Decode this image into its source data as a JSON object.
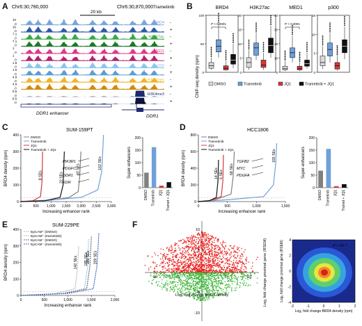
{
  "panels": {
    "A": {
      "letter": "A",
      "coord_left": "Chr6:30,780,000",
      "coord_right": "Chr6:30,870,000",
      "scale_label": "20 kb",
      "treatment_col": "Trametinib",
      "tracks": [
        {
          "label": "BRD4",
          "color": "#7aa5d9",
          "scale_top": "10",
          "scale_bot": ".0",
          "sign": "-"
        },
        {
          "label": "",
          "color": "#2f5aa6",
          "scale_top": "10",
          "scale_bot": ".0",
          "sign": "+"
        },
        {
          "label": "H3K27ac",
          "color": "#3aa845",
          "scale_top": "7.1",
          "scale_bot": ".0",
          "sign": "-"
        },
        {
          "label": "",
          "color": "#1d7a2c",
          "scale_top": "7.1",
          "scale_bot": ".0",
          "sign": "+"
        },
        {
          "label": "MED1",
          "color": "#e0388b",
          "scale_top": "1",
          "scale_bot": ".0",
          "sign": "-"
        },
        {
          "label": "",
          "color": "#b3236e",
          "scale_top": "1",
          "scale_bot": ".0",
          "sign": "+"
        },
        {
          "label": "p300",
          "color": "#8ec6ea",
          "scale_top": "1.6",
          "scale_bot": ".0",
          "sign": "-"
        },
        {
          "label": "",
          "color": "#5a9dd4",
          "scale_top": "1.6",
          "scale_bot": ".0",
          "sign": "+"
        },
        {
          "label": "H3K4me1",
          "color": "#f0b429",
          "scale_top": "4.9",
          "scale_bot": ".0",
          "sign": "-"
        },
        {
          "label": "",
          "color": "#d18a0d",
          "scale_top": "4.9",
          "scale_bot": ".0",
          "sign": "+"
        },
        {
          "label": "H3K4me3",
          "color": "#1c2b6e",
          "scale_top": "8.5",
          "scale_bot": ".0",
          "sign": "-"
        },
        {
          "label": "",
          "color": "#0c1447",
          "scale_top": "8.5",
          "scale_bot": ".0",
          "sign": "+"
        }
      ],
      "enhancer_label": "DDR1 enhancer",
      "gene_label": "DDR1"
    },
    "B": {
      "letter": "B",
      "ylabel": "ChIP-seq density (rpm)",
      "subplots": [
        {
          "title": "BRD4",
          "pval": "P < 0.0001",
          "ylim": [
            0,
            100
          ],
          "ticks": [
            "0",
            "50",
            "100"
          ]
        },
        {
          "title": "H3K27ac",
          "pval": "",
          "ylim": [
            0,
            20
          ],
          "ticks": [
            "0",
            "5",
            "10",
            "15",
            "20"
          ]
        },
        {
          "title": "MED1",
          "pval": "P < 0.0001",
          "ylim": [
            0,
            40
          ],
          "ticks": [
            "0",
            "10",
            "20",
            "30",
            "40"
          ]
        },
        {
          "title": "p300",
          "pval": "",
          "ylim": [
            0,
            15
          ],
          "ticks": [
            "0",
            "5",
            "10",
            "15"
          ]
        }
      ],
      "legend": [
        {
          "label": "DMSO",
          "color": "#d9d9d9"
        },
        {
          "label": "Trametinib",
          "color": "#6fa0d8"
        },
        {
          "label": "JQ1",
          "color": "#d43a3a"
        },
        {
          "label": "Trametinib + JQ1",
          "color": "#111111"
        }
      ]
    },
    "C": {
      "letter": "C",
      "title": "SUM-159PT",
      "legend": [
        "DMSO",
        "Trametinib",
        "JQ1",
        "Trametinib + JQ1"
      ],
      "ylabel": "BRD4 density (rpm)",
      "xlabel": "Increasing enhancer rank",
      "xticks": [
        "0",
        "500",
        "1,000",
        "1,500",
        "2,000",
        "2,500",
        "3,000"
      ],
      "yticks": [
        "0",
        "100",
        "200",
        "300",
        "400"
      ],
      "se_labels": [
        "8 SEs",
        "60 SEs",
        "22 SEs",
        "162 SEs"
      ],
      "genes": [
        "PIK3R1",
        "PDGFC",
        "DDR1",
        "KDR"
      ],
      "bar_ylabel": "Super-enhancers",
      "bar_yticks": [
        "0",
        "50",
        "100",
        "150",
        "200"
      ],
      "bar_categories": [
        "DMSO",
        "Trametinib",
        "JQ1",
        "Tramet + JQ1"
      ]
    },
    "D": {
      "letter": "D",
      "title": "HCC1806",
      "legend": [
        "DMSO",
        "Trametinib",
        "JQ1",
        "Trametinib + JQ1"
      ],
      "ylabel": "BRD4 density (rpm)",
      "xlabel": "Increasing enhancer rank",
      "xticks": [
        "0",
        "500",
        "1,000",
        "1,500"
      ],
      "yticks": [
        "0",
        "200",
        "400",
        "600",
        "800"
      ],
      "se_labels": [
        "14 SEs",
        "6 SEs",
        "68 SEs",
        "155 SEs"
      ],
      "genes": [
        "TGFB2",
        "MYC",
        "PDGFA"
      ],
      "bar_ylabel": "Super-enhancers",
      "bar_yticks": [
        "0",
        "50",
        "100",
        "150",
        "200"
      ],
      "bar_categories": [
        "DMSO",
        "Trametinib",
        "JQ1",
        "Tramet + JQ1"
      ]
    },
    "E": {
      "letter": "E",
      "title": "SUM-229PE",
      "legend": [
        "EpCAM⁺ (DMSO)",
        "EpCAM⁺ (trametinib)",
        "EpCAM⁻ (DMSO)",
        "EpCAM⁻ (trametinib)"
      ],
      "ylabel": "BRD4 density (rpm)",
      "xlabel": "Increasing enhancer rank",
      "xticks": [
        "0",
        "500",
        "1,000",
        "1,500",
        "2,000"
      ],
      "yticks": [
        "0",
        "100",
        "200",
        "300",
        "400"
      ],
      "se_labels": [
        "142 SEs",
        "185 SEs",
        "189 SEs",
        "209 SEs"
      ]
    },
    "F": {
      "letter": "F",
      "xlabel": "Log₂ fold change BRD4 density",
      "ylabel": "Log₂ fold change proximal gene (RSEM)",
      "xticks": [
        "-10",
        "-5",
        "5",
        "10"
      ],
      "yticks": [
        "10",
        "5",
        "-5",
        "-10"
      ],
      "inset": {
        "pval": "P < 10⁻⁵",
        "xlabel": "Log₂ fold change BRD4 density (rpm)",
        "ylabel": "Log₂ fold change proximal gene (RSEM)",
        "xticks": [
          "-2",
          "-1",
          "0",
          "1",
          "2"
        ],
        "yticks": [
          "-4",
          "-2",
          "0",
          "2",
          "4"
        ]
      }
    }
  },
  "chart_data": [
    {
      "type": "bar",
      "panel": "C-inset",
      "ylabel": "Super-enhancers",
      "categories": [
        "DMSO",
        "Trametinib",
        "JQ1",
        "Tramet + JQ1"
      ],
      "values": [
        60,
        162,
        8,
        22
      ],
      "colors": [
        "#808080",
        "#6fa0d8",
        "#d43a3a",
        "#111111"
      ],
      "ylim": [
        0,
        200
      ]
    },
    {
      "type": "bar",
      "panel": "D-inset",
      "ylabel": "Super-enhancers",
      "categories": [
        "DMSO",
        "Trametinib",
        "JQ1",
        "Tramet + JQ1"
      ],
      "values": [
        68,
        155,
        6,
        14
      ],
      "colors": [
        "#808080",
        "#6fa0d8",
        "#d43a3a",
        "#111111"
      ],
      "ylim": [
        0,
        200
      ]
    },
    {
      "type": "line",
      "panel": "C",
      "xlabel": "Increasing enhancer rank",
      "ylabel": "BRD4 density (rpm)",
      "xlim": [
        0,
        3000
      ],
      "ylim": [
        0,
        400
      ],
      "series": [
        {
          "name": "DMSO",
          "color": "#808080",
          "x": [
            0,
            1000,
            1600,
            1900,
            1950,
            1990
          ],
          "y": [
            0,
            8,
            25,
            60,
            150,
            300
          ]
        },
        {
          "name": "Trametinib",
          "color": "#6fa0d8",
          "x": [
            0,
            1000,
            2000,
            2550,
            2680,
            2740
          ],
          "y": [
            0,
            10,
            25,
            70,
            180,
            400
          ]
        },
        {
          "name": "JQ1",
          "color": "#d43a3a",
          "x": [
            0,
            400,
            650,
            700,
            720
          ],
          "y": [
            0,
            5,
            30,
            120,
            300
          ]
        },
        {
          "name": "Trametinib + JQ1",
          "color": "#111111",
          "x": [
            0,
            800,
            1300,
            1400,
            1440
          ],
          "y": [
            0,
            5,
            25,
            100,
            300
          ]
        }
      ]
    },
    {
      "type": "line",
      "panel": "D",
      "xlabel": "Increasing enhancer rank",
      "ylabel": "BRD4 density (rpm)",
      "xlim": [
        0,
        1600
      ],
      "ylim": [
        0,
        800
      ],
      "series": [
        {
          "name": "DMSO",
          "color": "#808080",
          "x": [
            0,
            300,
            600,
            640,
            660
          ],
          "y": [
            0,
            20,
            90,
            300,
            600
          ]
        },
        {
          "name": "Trametinib",
          "color": "#6fa0d8",
          "x": [
            0,
            600,
            1200,
            1380,
            1420,
            1440
          ],
          "y": [
            0,
            25,
            60,
            200,
            450,
            700
          ]
        },
        {
          "name": "JQ1",
          "color": "#d43a3a",
          "x": [
            0,
            200,
            420,
            450,
            460
          ],
          "y": [
            0,
            10,
            60,
            250,
            560
          ]
        },
        {
          "name": "Trametinib + JQ1",
          "color": "#111111",
          "x": [
            0,
            200,
            330,
            360,
            370
          ],
          "y": [
            0,
            10,
            50,
            250,
            500
          ]
        }
      ]
    },
    {
      "type": "line",
      "panel": "E",
      "xlabel": "Increasing enhancer rank",
      "ylabel": "BRD4 density (rpm)",
      "xlim": [
        0,
        2000
      ],
      "ylim": [
        0,
        400
      ],
      "series": [
        {
          "name": "EpCAM⁺ (DMSO)",
          "color": "#b9b9b9",
          "x": [
            0,
            700,
            1150,
            1200,
            1230
          ],
          "y": [
            0,
            10,
            40,
            150,
            300
          ]
        },
        {
          "name": "EpCAM⁺ (trametinib)",
          "color": "#9fc0e8",
          "x": [
            0,
            900,
            1350,
            1420,
            1440
          ],
          "y": [
            0,
            12,
            40,
            170,
            340
          ]
        },
        {
          "name": "EpCAM⁻ (DMSO)",
          "color": "#6e6e6e",
          "x": [
            0,
            900,
            1400,
            1470,
            1500
          ],
          "y": [
            0,
            12,
            40,
            180,
            360
          ]
        },
        {
          "name": "EpCAM⁻ (trametinib)",
          "color": "#3f6fb8",
          "x": [
            0,
            1000,
            1540,
            1620,
            1660
          ],
          "y": [
            0,
            12,
            40,
            180,
            380
          ]
        }
      ]
    },
    {
      "type": "scatter",
      "panel": "F",
      "xlabel": "Log₂ fold change BRD4 density",
      "ylabel": "Log₂ fold change proximal gene (RSEM)",
      "xlim": [
        -10,
        10
      ],
      "ylim": [
        -10,
        10
      ],
      "series": [
        {
          "name": "",
          "color": "#e8231f"
        },
        {
          "name": "",
          "color": "#3fb53a"
        }
      ]
    }
  ]
}
